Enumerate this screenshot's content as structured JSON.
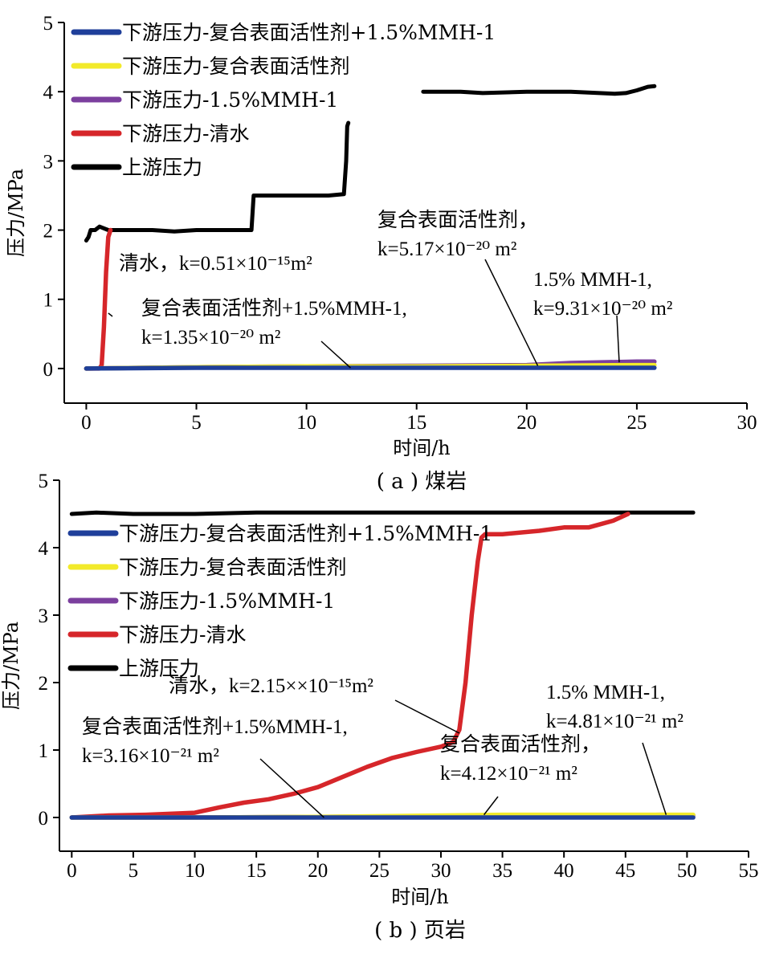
{
  "chart_data": [
    {
      "type": "line",
      "caption": "( a ) 煤岩",
      "xlabel": "时间/h",
      "ylabel": "压力/MPa",
      "xlim": [
        -1,
        30
      ],
      "ylim": [
        -0.5,
        5
      ],
      "xticks": [
        0,
        5,
        10,
        15,
        20,
        25,
        30
      ],
      "yticks": [
        0,
        1,
        2,
        3,
        4,
        5
      ],
      "legend_position": "top-left",
      "series": [
        {
          "name": "下游压力-复合表面活性剂+1.5%MMH-1",
          "color": "#1f3f9a",
          "x": [
            0,
            5,
            10,
            15,
            20,
            25,
            25.8
          ],
          "y": [
            0,
            0.01,
            0.01,
            0.01,
            0.01,
            0.01,
            0.01
          ]
        },
        {
          "name": "下游压力-复合表面活性剂",
          "color": "#f2ea2a",
          "x": [
            0,
            5,
            10,
            15,
            20,
            25,
            25.8
          ],
          "y": [
            0,
            0.02,
            0.03,
            0.03,
            0.04,
            0.05,
            0.05
          ]
        },
        {
          "name": "下游压力-1.5%MMH-1",
          "color": "#7b3f9e",
          "x": [
            0,
            5,
            10,
            15,
            20,
            22,
            25,
            25.8
          ],
          "y": [
            0,
            0.02,
            0.03,
            0.04,
            0.05,
            0.08,
            0.1,
            0.1
          ]
        },
        {
          "name": "下游压力-清水",
          "color": "#d6262a",
          "x": [
            0,
            0.6,
            0.7,
            0.8,
            0.9,
            1.0,
            1.1
          ],
          "y": [
            0,
            0.0,
            0.05,
            0.6,
            1.4,
            1.9,
            2.0
          ]
        },
        {
          "name": "上游压力",
          "color": "#000000",
          "x": [
            0,
            0.1,
            0.2,
            0.4,
            0.6,
            1,
            2,
            3,
            4,
            5,
            6,
            7,
            7.5,
            7.6,
            8,
            9,
            10,
            11,
            11.7,
            11.8,
            11.85,
            11.9,
            15,
            15.3,
            16,
            17,
            18,
            20,
            22,
            24,
            24.5,
            25,
            25.5,
            25.8
          ],
          "y": [
            1.85,
            1.9,
            2.0,
            2.0,
            2.05,
            2.0,
            2.0,
            2.0,
            1.98,
            2.0,
            2.0,
            2.0,
            2.0,
            2.5,
            2.5,
            2.5,
            2.5,
            2.5,
            2.52,
            3.0,
            3.5,
            3.55,
            null,
            4.0,
            4.0,
            4.0,
            3.98,
            4.0,
            4.0,
            3.97,
            3.98,
            4.02,
            4.07,
            4.08
          ]
        }
      ],
      "annotations": [
        {
          "lines": [
            "清水，k=0.51×10⁻¹⁵m²"
          ],
          "target": [
            1.0,
            0.8
          ]
        },
        {
          "lines": [
            "复合表面活性剂+1.5%MMH-1,",
            "k=1.35×10⁻²⁰ m²"
          ],
          "target": [
            12,
            0.01
          ]
        },
        {
          "lines": [
            "复合表面活性剂，",
            "k=5.17×10⁻²⁰ m²"
          ],
          "target": [
            20.5,
            0.04
          ]
        },
        {
          "lines": [
            "1.5% MMH-1,",
            "k=9.31×10⁻²⁰ m²"
          ],
          "target": [
            24.2,
            0.09
          ]
        }
      ]
    },
    {
      "type": "line",
      "caption": "( b ) 页岩",
      "xlabel": "时间/h",
      "ylabel": "压力/MPa",
      "xlim": [
        -1,
        55
      ],
      "ylim": [
        -0.5,
        5
      ],
      "xticks": [
        0,
        5,
        10,
        15,
        20,
        25,
        30,
        35,
        40,
        45,
        50,
        55
      ],
      "yticks": [
        0,
        1,
        2,
        3,
        4,
        5
      ],
      "legend_position": "top-left",
      "series": [
        {
          "name": "下游压力-复合表面活性剂+1.5%MMH-1",
          "color": "#1f3f9a",
          "x": [
            0,
            10,
            20,
            30,
            40,
            50,
            50.5
          ],
          "y": [
            0,
            0.0,
            0.0,
            0.0,
            0.0,
            0.0,
            0.0
          ]
        },
        {
          "name": "下游压力-复合表面活性剂",
          "color": "#f2ea2a",
          "x": [
            0,
            10,
            20,
            30,
            35,
            40,
            50,
            50.5
          ],
          "y": [
            0,
            0.0,
            0.01,
            0.03,
            0.04,
            0.04,
            0.04,
            0.04
          ]
        },
        {
          "name": "下游压力-1.5%MMH-1",
          "color": "#7b3f9e",
          "x": [
            0,
            10,
            20,
            30,
            40,
            48,
            50.5
          ],
          "y": [
            0,
            0.0,
            0.01,
            0.02,
            0.02,
            0.04,
            0.03
          ]
        },
        {
          "name": "下游压力-清水",
          "color": "#d6262a",
          "x": [
            0,
            3,
            6,
            10,
            12,
            14,
            16,
            18,
            20,
            22,
            24,
            26,
            28,
            30,
            31,
            31.5,
            32,
            32.5,
            33,
            33.3,
            33.6,
            35,
            38,
            40,
            42,
            44,
            45.2
          ],
          "y": [
            0,
            0.03,
            0.04,
            0.07,
            0.15,
            0.22,
            0.27,
            0.35,
            0.45,
            0.6,
            0.75,
            0.88,
            0.97,
            1.05,
            1.12,
            1.3,
            2.0,
            3.0,
            3.8,
            4.15,
            4.2,
            4.2,
            4.25,
            4.3,
            4.3,
            4.4,
            4.5
          ]
        },
        {
          "name": "上游压力",
          "color": "#000000",
          "x": [
            0,
            2,
            5,
            10,
            15,
            20,
            25,
            30,
            35,
            40,
            45,
            50,
            50.5
          ],
          "y": [
            4.5,
            4.52,
            4.5,
            4.5,
            4.52,
            4.52,
            4.52,
            4.52,
            4.52,
            4.52,
            4.52,
            4.52,
            4.52
          ]
        }
      ],
      "annotations": [
        {
          "lines": [
            "清水，k=2.15××10⁻¹⁵m²"
          ],
          "target": [
            31.5,
            1.25
          ]
        },
        {
          "lines": [
            "复合表面活性剂+1.5%MMH-1,",
            "k=3.16×10⁻²¹ m²"
          ],
          "target": [
            20.5,
            0.0
          ]
        },
        {
          "lines": [
            "复合表面活性剂，",
            "k=4.12×10⁻²¹ m²"
          ],
          "target": [
            33.5,
            0.04
          ]
        },
        {
          "lines": [
            "1.5% MMH-1,",
            "k=4.81×10⁻²¹ m²"
          ],
          "target": [
            48.3,
            0.04
          ]
        }
      ]
    }
  ]
}
